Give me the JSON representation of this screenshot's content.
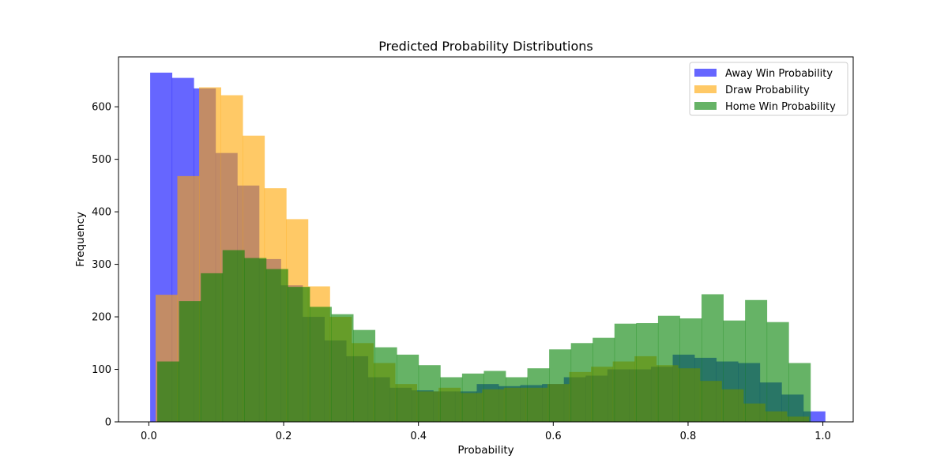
{
  "chart_data": {
    "type": "bar",
    "title": "Predicted Probability Distributions",
    "xlabel": "Probability",
    "ylabel": "Frequency",
    "xlim": [
      -0.045,
      1.045
    ],
    "ylim": [
      0,
      695
    ],
    "xticks": [
      0.0,
      0.2,
      0.4,
      0.6,
      0.8,
      1.0
    ],
    "xtick_labels": [
      "0.0",
      "0.2",
      "0.4",
      "0.6",
      "0.8",
      "1.0"
    ],
    "yticks": [
      0,
      100,
      200,
      300,
      400,
      500,
      600
    ],
    "ytick_labels": [
      "0",
      "100",
      "200",
      "300",
      "400",
      "500",
      "600"
    ],
    "grid": false,
    "legend_position": "top-right",
    "series": [
      {
        "name": "Away Win Probability",
        "color": "#0000ff",
        "alpha": 0.6,
        "bin_start": 0.002,
        "bin_width": 0.0323,
        "counts": [
          665,
          655,
          635,
          512,
          450,
          310,
          260,
          200,
          155,
          125,
          85,
          65,
          60,
          58,
          58,
          72,
          68,
          70,
          72,
          85,
          88,
          100,
          100,
          105,
          128,
          122,
          115,
          112,
          75,
          52,
          20
        ]
      },
      {
        "name": "Draw Probability",
        "color": "#ffa500",
        "alpha": 0.6,
        "bin_start": 0.01,
        "bin_width": 0.0323,
        "counts": [
          242,
          468,
          637,
          622,
          545,
          445,
          386,
          258,
          200,
          150,
          112,
          72,
          58,
          65,
          55,
          62,
          65,
          65,
          72,
          95,
          105,
          115,
          125,
          108,
          102,
          78,
          62,
          35,
          20,
          10
        ]
      },
      {
        "name": "Home Win Probability",
        "color": "#008000",
        "alpha": 0.6,
        "bin_start": 0.0125,
        "bin_width": 0.0323,
        "counts": [
          115,
          230,
          283,
          327,
          312,
          291,
          257,
          219,
          205,
          175,
          142,
          128,
          108,
          85,
          92,
          97,
          85,
          102,
          138,
          150,
          160,
          187,
          188,
          202,
          197,
          243,
          193,
          232,
          190,
          112
        ]
      }
    ]
  }
}
